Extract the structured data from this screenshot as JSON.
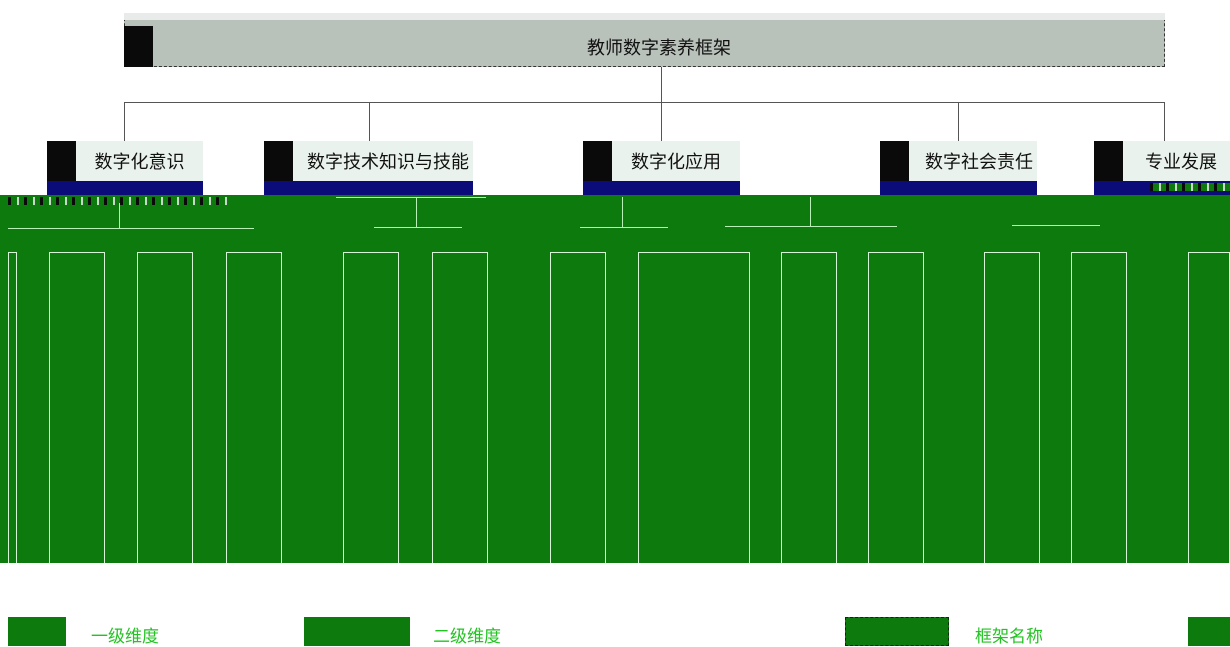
{
  "framework": {
    "title": "教师数字素养框架"
  },
  "dimensions": [
    {
      "label": "数字化意识"
    },
    {
      "label": "数字技术知识与技能"
    },
    {
      "label": "数字化应用"
    },
    {
      "label": "数字社会责任"
    },
    {
      "label": "专业发展"
    }
  ],
  "legend": {
    "level1": "一级维度",
    "level2": "二级维度",
    "framework_name": "框架名称"
  },
  "colors": {
    "level1_fill": "#e9f2ec",
    "level1_bar": "#0b0b7a",
    "level2_fill": "#0d7a0d",
    "root_fill": "#b9c1bb"
  }
}
